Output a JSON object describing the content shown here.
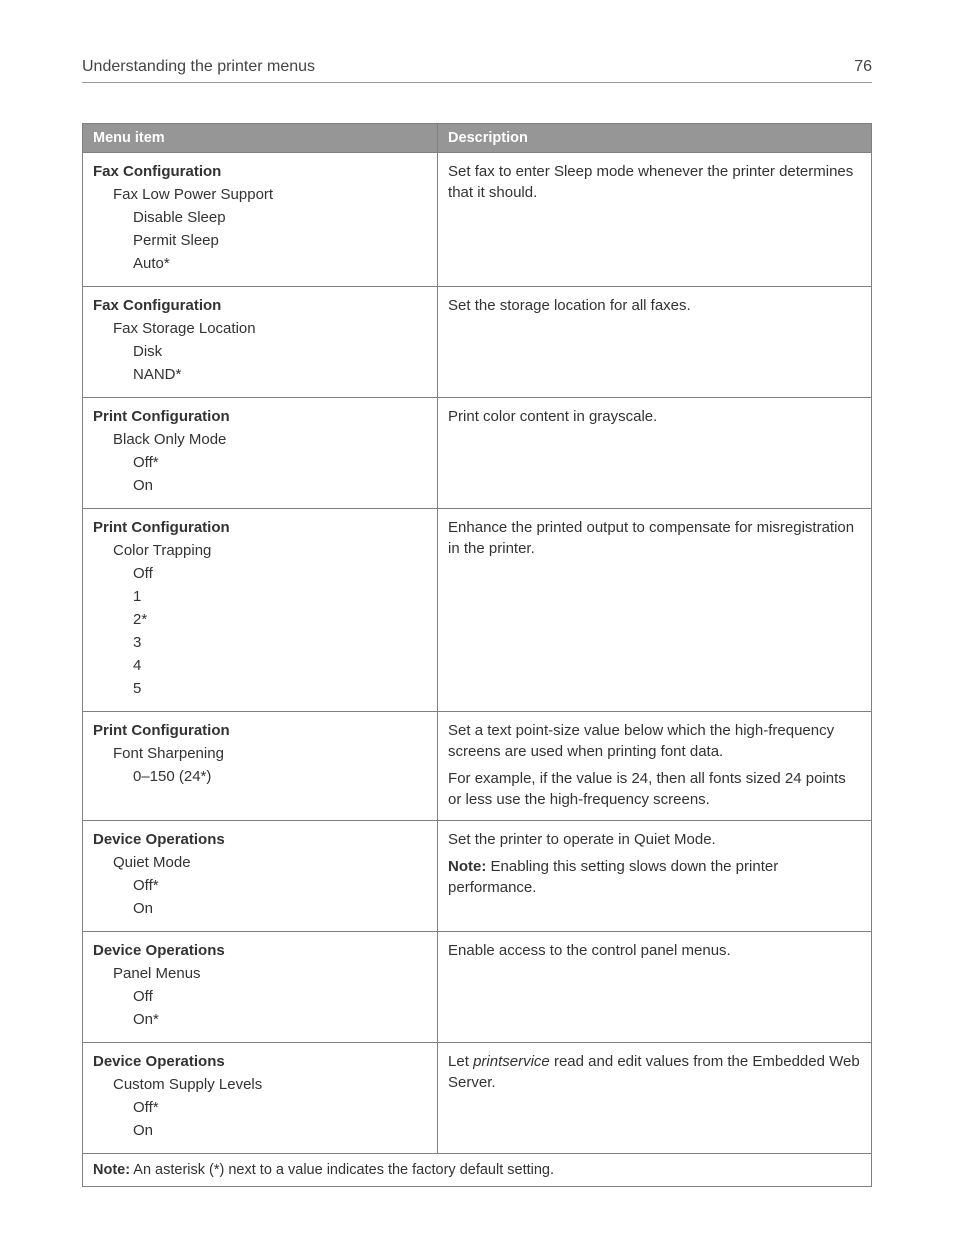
{
  "header": {
    "title": "Understanding the printer menus",
    "page_number": "76"
  },
  "table": {
    "columns": [
      "Menu item",
      "Description"
    ],
    "footer_note_label": "Note:",
    "footer_note_text": " An asterisk (*) next to a value indicates the factory default setting.",
    "rows": [
      {
        "menu_title": "Fax Configuration",
        "sub1": "Fax Low Power Support",
        "options": [
          "Disable Sleep",
          "Permit Sleep",
          "Auto*"
        ],
        "description": [
          {
            "type": "plain",
            "text": "Set fax to enter Sleep mode whenever the printer determines that it should."
          }
        ]
      },
      {
        "menu_title": "Fax Configuration",
        "sub1": "Fax Storage Location",
        "options": [
          "Disk",
          "NAND*"
        ],
        "description": [
          {
            "type": "plain",
            "text": "Set the storage location for all faxes."
          }
        ]
      },
      {
        "menu_title": "Print Configuration",
        "sub1": "Black Only Mode",
        "options": [
          "Off*",
          "On"
        ],
        "description": [
          {
            "type": "plain",
            "text": "Print color content in grayscale."
          }
        ]
      },
      {
        "menu_title": "Print Configuration",
        "sub1": "Color Trapping",
        "options": [
          "Off",
          "1",
          "2*",
          "3",
          "4",
          "5"
        ],
        "description": [
          {
            "type": "plain",
            "text": "Enhance the printed output to compensate for misregistration in the printer."
          }
        ]
      },
      {
        "menu_title": "Print Configuration",
        "sub1": "Font Sharpening",
        "options": [
          "0–150 (24*)"
        ],
        "description": [
          {
            "type": "plain",
            "text": "Set a text point-size value below which the high-frequency screens are used when printing font data."
          },
          {
            "type": "plain",
            "text": "For example, if the value is 24, then all fonts sized 24 points or less use the high-frequency screens."
          }
        ]
      },
      {
        "menu_title": "Device Operations",
        "sub1": "Quiet Mode",
        "options": [
          "Off*",
          "On"
        ],
        "description": [
          {
            "type": "plain",
            "text": "Set the printer to operate in Quiet Mode."
          },
          {
            "type": "note",
            "label": "Note:",
            "text": " Enabling this setting slows down the printer performance."
          }
        ]
      },
      {
        "menu_title": "Device Operations",
        "sub1": "Panel Menus",
        "options": [
          "Off",
          "On*"
        ],
        "description": [
          {
            "type": "plain",
            "text": "Enable access to the control panel menus."
          }
        ]
      },
      {
        "menu_title": "Device Operations",
        "sub1": "Custom Supply Levels",
        "options": [
          "Off*",
          "On"
        ],
        "description": [
          {
            "type": "mixed",
            "before": "Let ",
            "italic": "printservice",
            "after": " read and edit values from the Embedded Web Server."
          }
        ]
      }
    ]
  }
}
